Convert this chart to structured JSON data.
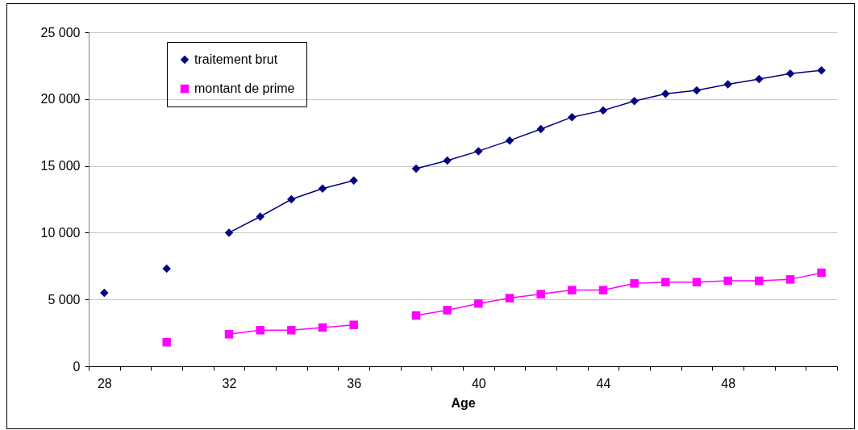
{
  "chart_data": {
    "type": "line",
    "xlabel": "Age",
    "categories": [
      "28",
      null,
      null,
      null,
      "32",
      null,
      null,
      null,
      "36",
      null,
      null,
      null,
      "40",
      null,
      null,
      null,
      "44",
      null,
      null,
      null,
      "48",
      null,
      null,
      null
    ],
    "series": [
      {
        "name": "traitement brut",
        "color": "#000080",
        "marker": "diamond",
        "values": [
          5500,
          null,
          7300,
          null,
          10000,
          11200,
          12500,
          13300,
          13900,
          null,
          14800,
          15400,
          16100,
          16900,
          17750,
          18650,
          19150,
          19850,
          20400,
          20650,
          21100,
          21500,
          21900,
          22150
        ]
      },
      {
        "name": "montant de prime",
        "color": "#ff00ff",
        "marker": "square",
        "values": [
          null,
          null,
          1800,
          null,
          2400,
          2700,
          2700,
          2900,
          3100,
          null,
          3800,
          4200,
          4700,
          5100,
          5400,
          5700,
          5700,
          6200,
          6300,
          6300,
          6400,
          6400,
          6500,
          7000
        ]
      }
    ],
    "ylim": [
      0,
      25000
    ],
    "yticks": [
      0,
      {
        "value": 5000,
        "label": "5 000"
      },
      {
        "value": 10000,
        "label": "10 000"
      },
      {
        "value": 15000,
        "label": "15 000"
      },
      {
        "value": 20000,
        "label": "20 000"
      },
      {
        "value": 25000,
        "label": "25 000"
      }
    ],
    "grid": "y",
    "legend": "top left"
  }
}
